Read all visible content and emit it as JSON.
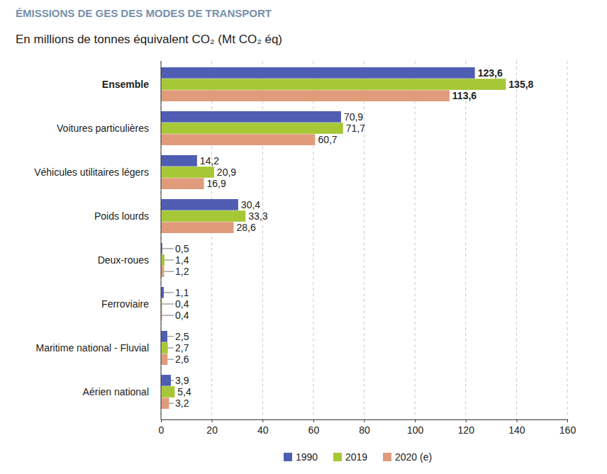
{
  "chart_data": {
    "type": "bar",
    "orientation": "horizontal",
    "title": "ÉMISSIONS DE GES DES MODES DE TRANSPORT",
    "subtitle": "En millions de tonnes équivalent CO₂ (Mt CO₂ éq)",
    "categories": [
      "Ensemble",
      "Voitures particulières",
      "Véhicules utilitaires légers",
      "Poids lourds",
      "Deux-roues",
      "Ferroviaire",
      "Maritime national - Fluvial",
      "Aérien national"
    ],
    "series": [
      {
        "name": "1990",
        "color": "#4f5db3",
        "values": [
          123.6,
          70.9,
          14.2,
          30.4,
          0.5,
          1.1,
          2.5,
          3.9
        ],
        "value_labels": [
          "123,6",
          "70,9",
          "14,2",
          "30,4",
          "0,5",
          "1,1",
          "2,5",
          "3,9"
        ]
      },
      {
        "name": "2019",
        "color": "#a6c736",
        "values": [
          135.8,
          71.7,
          20.9,
          33.3,
          1.4,
          0.4,
          2.7,
          5.4
        ],
        "value_labels": [
          "135,8",
          "71,7",
          "20,9",
          "33,3",
          "1,4",
          "0,4",
          "2,7",
          "5,4"
        ]
      },
      {
        "name": "2020 (e)",
        "color": "#e09b7a",
        "values": [
          113.6,
          60.7,
          16.9,
          28.6,
          1.2,
          0.4,
          2.6,
          3.2
        ],
        "value_labels": [
          "113,6",
          "60,7",
          "16,9",
          "28,6",
          "1,2",
          "0,4",
          "2,6",
          "3,2"
        ]
      }
    ],
    "xlim": [
      0,
      160
    ],
    "xticks": [
      0,
      20,
      40,
      60,
      80,
      100,
      120,
      140,
      160
    ],
    "grid": true,
    "data_labels": true,
    "legend": "bottom"
  }
}
